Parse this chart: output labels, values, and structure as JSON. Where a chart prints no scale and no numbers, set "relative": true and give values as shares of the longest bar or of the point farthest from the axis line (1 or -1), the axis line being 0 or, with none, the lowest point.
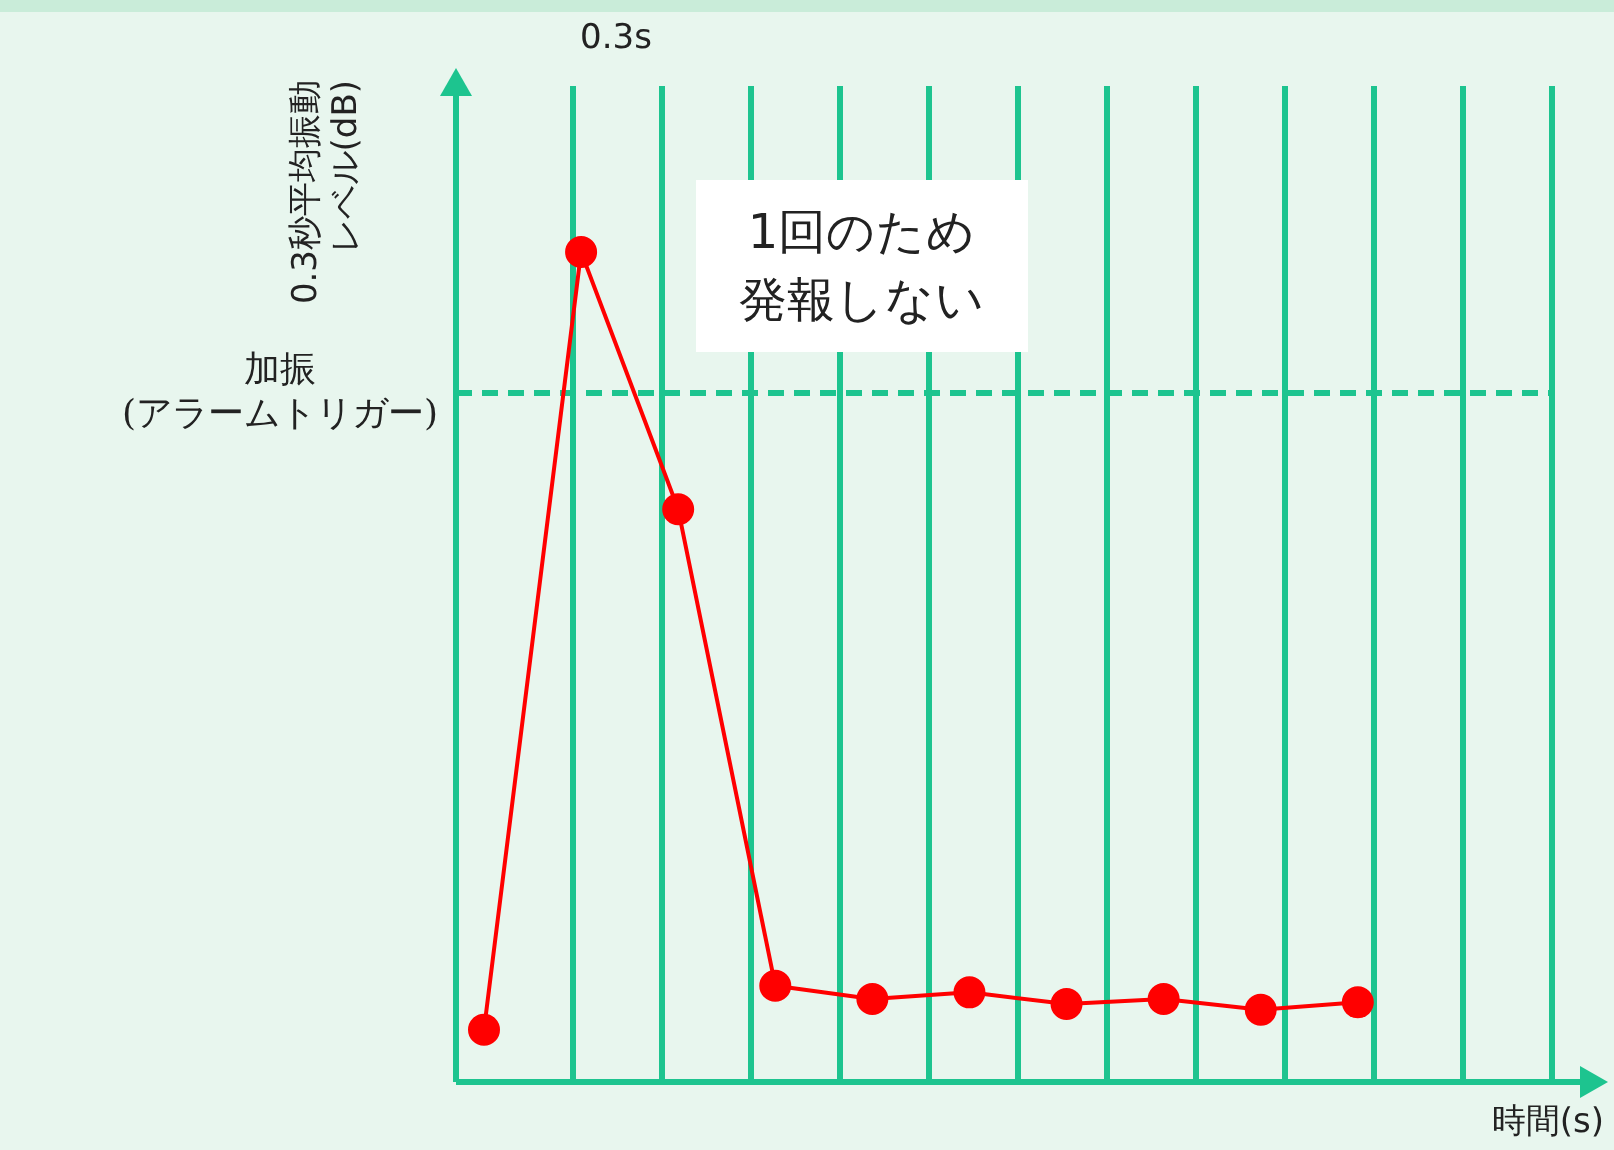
{
  "chart_data": {
    "type": "line",
    "relative": true,
    "xlabel": "時間(s)",
    "ylabel": "0.3秒平均振動レベル(dB)",
    "categories": [
      null,
      null,
      null,
      null,
      null,
      null,
      null,
      null,
      null,
      null,
      null,
      null
    ],
    "series": [
      {
        "color": "#ff0000",
        "values": [
          0.063,
          1,
          0.69,
          0.116,
          0.1,
          0.108,
          0.094,
          0.1,
          0.087,
          0.096,
          null,
          null
        ]
      }
    ],
    "ref_lines": [
      {
        "axis": "y",
        "value": 0.83,
        "label": "加振\n(アラームトリガー)",
        "color": "#1dc48f",
        "line_style": "dashed"
      }
    ],
    "annotations": [
      "0.3s",
      "1回のため発報しない"
    ],
    "grid": "x",
    "marker": "circle",
    "line_style": "solid"
  }
}
